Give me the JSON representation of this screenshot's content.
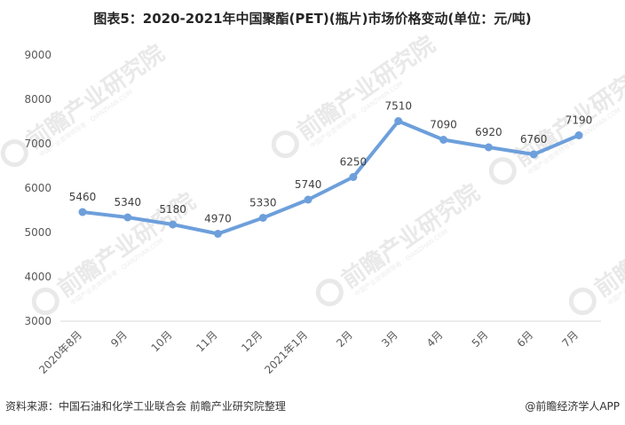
{
  "title": "图表5：2020-2021年中国聚酯(PET)(瓶片)市场价格变动(单位：元/吨)",
  "footer": {
    "source": "资料来源：中国石油和化学工业联合会 前瞻产业研究院整理",
    "brand": "@前瞻经济学人APP"
  },
  "watermark": {
    "text": "前瞻产业研究院",
    "sub": "中国产业咨询领导者 · QIANZHAN.COM"
  },
  "colors": {
    "line": "#6d9fdb",
    "axis": "#d9d9d9",
    "watermark": "#e9e9e9"
  },
  "chart_data": {
    "type": "line",
    "title": "图表5：2020-2021年中国聚酯(PET)(瓶片)市场价格变动(单位：元/吨)",
    "categories": [
      "2020年8月",
      "9月",
      "10月",
      "11月",
      "12月",
      "2021年1月",
      "2月",
      "3月",
      "4月",
      "5月",
      "6月",
      "7月"
    ],
    "series": [
      {
        "values": [
          5460,
          5340,
          5180,
          4970,
          5330,
          5740,
          6250,
          7510,
          7090,
          6920,
          6760,
          7190
        ]
      }
    ],
    "ylim": [
      3000,
      9000
    ],
    "yticks": [
      3000,
      4000,
      5000,
      6000,
      7000,
      8000,
      9000
    ],
    "grid": false,
    "legend": "none",
    "data_labels": true
  }
}
